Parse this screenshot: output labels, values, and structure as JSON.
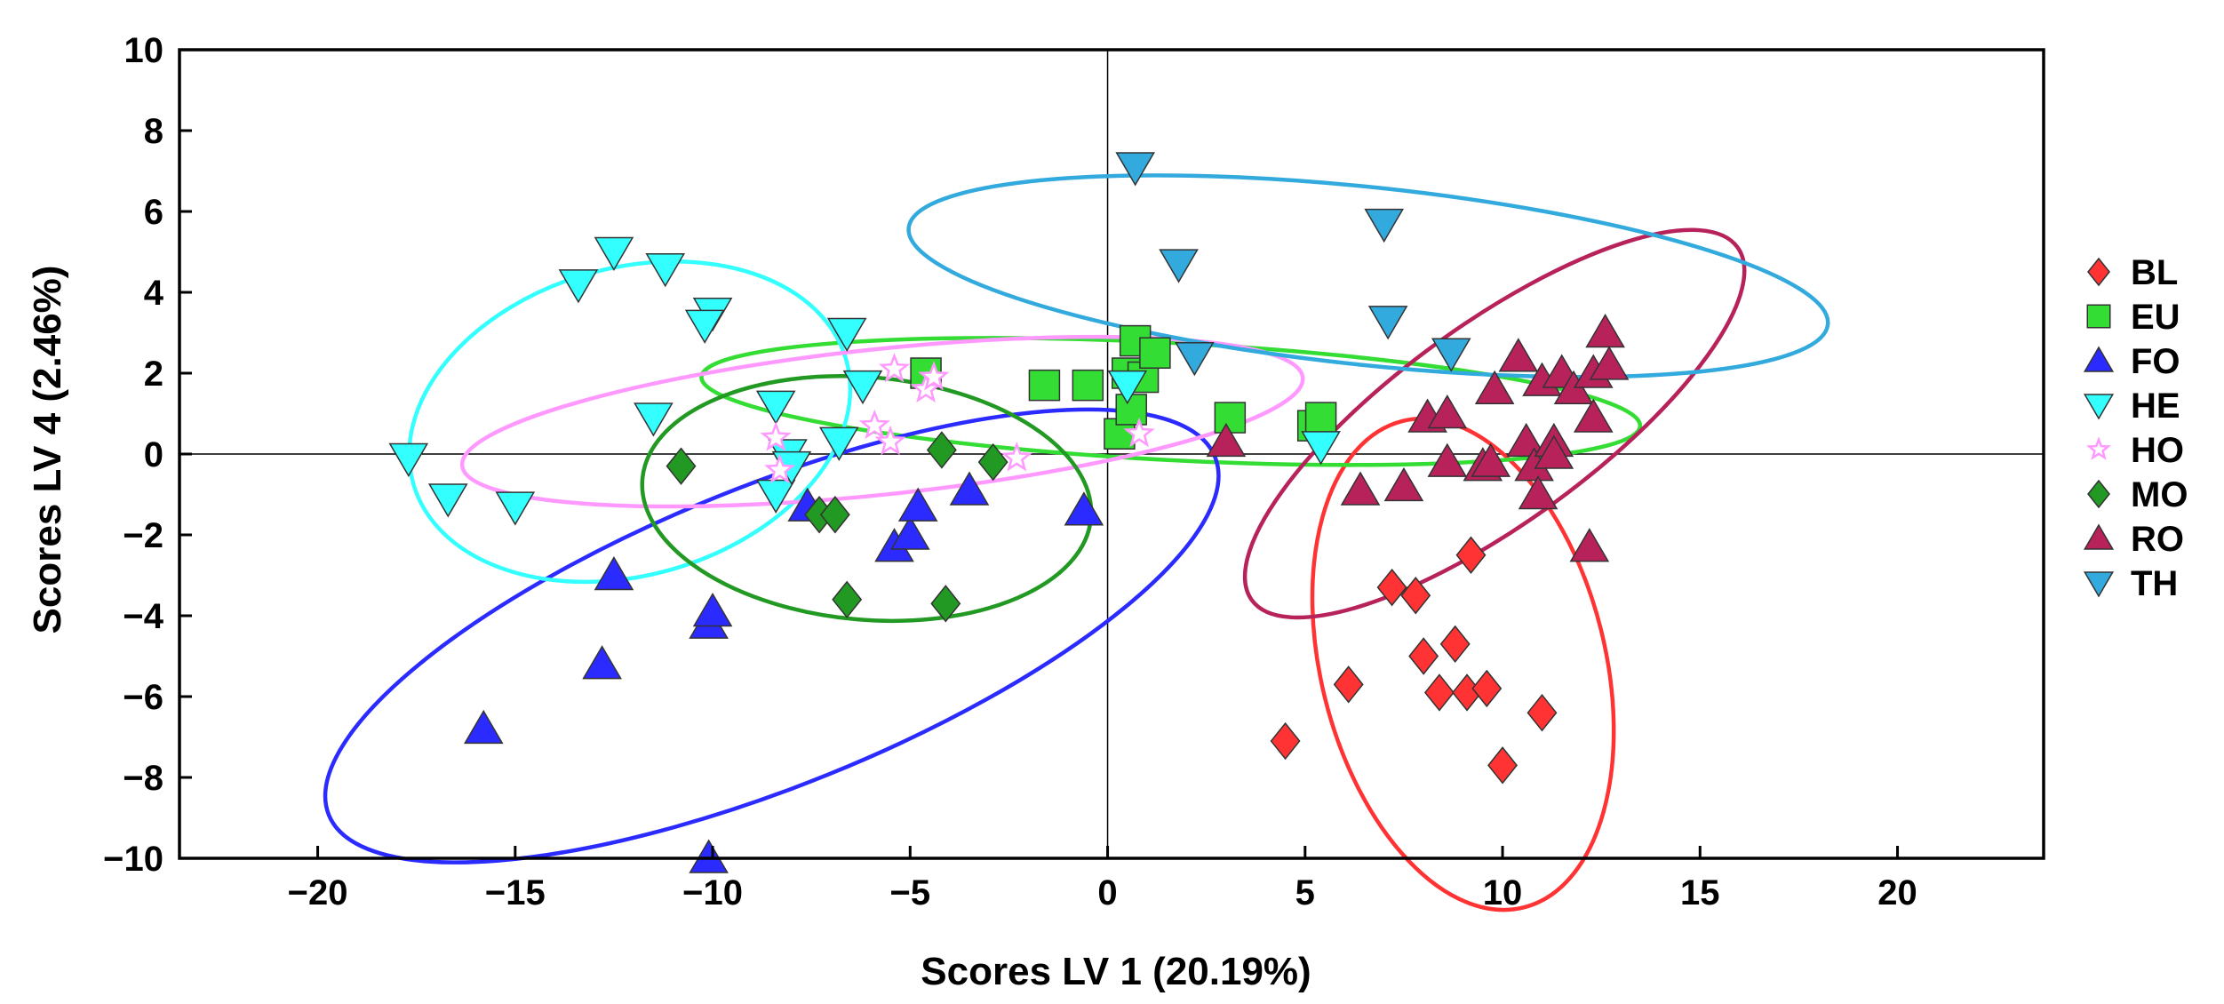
{
  "chart_data": {
    "type": "scatter",
    "xlabel": "Scores LV 1 (20.19%)",
    "ylabel": "Scores LV 4 (2.46%)",
    "xlim": [
      -23.5,
      23.7
    ],
    "ylim": [
      -10,
      10
    ],
    "xticks": [
      -20,
      -15,
      -10,
      -5,
      0,
      5,
      10,
      15,
      20
    ],
    "yticks": [
      -10,
      -8,
      -6,
      -4,
      -2,
      0,
      2,
      4,
      6,
      8,
      10
    ],
    "reference_lines": {
      "x": 0,
      "y": 0
    },
    "legend_position": "right",
    "series": [
      {
        "name": "BL",
        "marker": "diamond",
        "color": "#ff3333",
        "points": [
          [
            4.5,
            -7.1
          ],
          [
            6.1,
            -5.7
          ],
          [
            7.2,
            -3.3
          ],
          [
            7.8,
            -3.5
          ],
          [
            8,
            -5
          ],
          [
            8.4,
            -5.9
          ],
          [
            8.8,
            -4.7
          ],
          [
            9.1,
            -5.9
          ],
          [
            9.2,
            -2.5
          ],
          [
            9.6,
            -5.8
          ],
          [
            10,
            -7.7
          ],
          [
            11,
            -6.4
          ]
        ],
        "ellipse": {
          "cx": 9.0,
          "cy": -5.2,
          "rx": 3.6,
          "ry": 6.2,
          "angle": 14
        }
      },
      {
        "name": "EU",
        "marker": "square",
        "color": "#33dd33",
        "points": [
          [
            -4.6,
            2
          ],
          [
            -1.6,
            1.7
          ],
          [
            -0.5,
            1.7
          ],
          [
            0.3,
            0.5
          ],
          [
            0.5,
            2
          ],
          [
            0.6,
            1.1
          ],
          [
            0.7,
            2.8
          ],
          [
            0.9,
            1.9
          ],
          [
            1.2,
            2.5
          ],
          [
            3.1,
            0.9
          ],
          [
            5.2,
            0.7
          ],
          [
            5.4,
            0.9
          ]
        ],
        "ellipse": {
          "cx": 1.6,
          "cy": 1.3,
          "rx": 11.9,
          "ry": 1.45,
          "angle": -3
        }
      },
      {
        "name": "FO",
        "marker": "triangle-up",
        "color": "#2b2bff",
        "points": [
          [
            -15.8,
            -6.8
          ],
          [
            -12.8,
            -5.2
          ],
          [
            -12.5,
            -3
          ],
          [
            -10.1,
            -4.2
          ],
          [
            -10,
            -3.9
          ],
          [
            -10.1,
            -10
          ],
          [
            -7.6,
            -1.3
          ],
          [
            -5.4,
            -2.3
          ],
          [
            -5,
            -2
          ],
          [
            -4.8,
            -1.3
          ],
          [
            -3.5,
            -0.9
          ],
          [
            -0.6,
            -1.4
          ]
        ],
        "ellipse": {
          "cx": -8.5,
          "cy": -4.5,
          "rx": 12.1,
          "ry": 3.7,
          "angle": 22
        }
      },
      {
        "name": "HE",
        "marker": "triangle-down",
        "color": "#33ffff",
        "points": [
          [
            -17.7,
            -0.1
          ],
          [
            -16.7,
            -1.1
          ],
          [
            -15,
            -1.3
          ],
          [
            -13.4,
            4.2
          ],
          [
            -12.5,
            5
          ],
          [
            -11.2,
            4.6
          ],
          [
            -11.5,
            0.9
          ],
          [
            -10,
            3.5
          ],
          [
            -10.2,
            3.2
          ],
          [
            -8.4,
            1.2
          ],
          [
            -8.4,
            -1
          ],
          [
            -8.1,
            0
          ],
          [
            -8,
            -0.3
          ],
          [
            -6.6,
            3
          ],
          [
            -6.8,
            0.3
          ],
          [
            -6.2,
            1.7
          ],
          [
            0.5,
            1.7
          ],
          [
            5.4,
            0.2
          ]
        ],
        "ellipse": {
          "cx": -12.1,
          "cy": 0.8,
          "rx": 5.7,
          "ry": 3.8,
          "angle": 16
        }
      },
      {
        "name": "HO",
        "marker": "star",
        "color": "#ff99ff",
        "points": [
          [
            -8.4,
            0.4
          ],
          [
            -8.3,
            -0.4
          ],
          [
            -5.9,
            0.7
          ],
          [
            -5.5,
            0.3
          ],
          [
            -5.4,
            2.1
          ],
          [
            -4.6,
            1.6
          ],
          [
            -4.4,
            1.9
          ],
          [
            -2.3,
            -0.1
          ],
          [
            0.8,
            0.5
          ]
        ],
        "ellipse": {
          "cx": -5.7,
          "cy": 0.8,
          "rx": 10.7,
          "ry": 1.8,
          "angle": 6
        }
      },
      {
        "name": "MO",
        "marker": "diamond",
        "color": "#229922",
        "points": [
          [
            -10.8,
            -0.3
          ],
          [
            -7.3,
            -1.5
          ],
          [
            -6.9,
            -1.5
          ],
          [
            -6.6,
            -3.6
          ],
          [
            -4.2,
            0.1
          ],
          [
            -4.1,
            -3.7
          ],
          [
            -2.9,
            -0.2
          ]
        ],
        "ellipse": {
          "cx": -6.1,
          "cy": -1.1,
          "rx": 5.7,
          "ry": 3.0,
          "angle": -5
        }
      },
      {
        "name": "RO",
        "marker": "triangle-up",
        "color": "#b8225a",
        "points": [
          [
            3,
            0.3
          ],
          [
            6.4,
            -0.9
          ],
          [
            7.5,
            -0.8
          ],
          [
            8.1,
            0.9
          ],
          [
            8.6,
            1
          ],
          [
            8.6,
            -0.2
          ],
          [
            9.5,
            -0.3
          ],
          [
            9.7,
            -0.2
          ],
          [
            9.8,
            1.6
          ],
          [
            10.4,
            2.4
          ],
          [
            10.6,
            0.3
          ],
          [
            10.8,
            -0.3
          ],
          [
            10.9,
            -1
          ],
          [
            11,
            1.8
          ],
          [
            11.3,
            0.3
          ],
          [
            11.3,
            0
          ],
          [
            11.5,
            2
          ],
          [
            11.8,
            1.6
          ],
          [
            12.2,
            -2.3
          ],
          [
            12.3,
            0.9
          ],
          [
            12.3,
            2
          ],
          [
            12.6,
            3
          ],
          [
            12.7,
            2.2
          ]
        ],
        "ellipse": {
          "cx": 9.8,
          "cy": 0.75,
          "rx": 7.6,
          "ry": 2.45,
          "angle": 36
        }
      },
      {
        "name": "TH",
        "marker": "triangle-down",
        "color": "#33aadd",
        "points": [
          [
            0.7,
            7.1
          ],
          [
            1.8,
            4.7
          ],
          [
            2.2,
            2.4
          ],
          [
            7,
            5.7
          ],
          [
            7.1,
            3.3
          ],
          [
            8.7,
            2.5
          ]
        ],
        "ellipse": {
          "cx": 6.6,
          "cy": 4.4,
          "rx": 11.7,
          "ry": 2.2,
          "angle": -6
        }
      }
    ]
  }
}
